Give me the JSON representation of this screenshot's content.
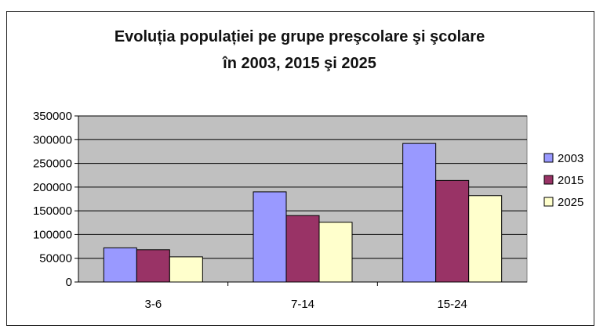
{
  "chart_data": {
    "type": "bar",
    "title_line1": "Evoluția populației pe grupe preşcolare şi şcolare",
    "title_line2": "în 2003, 2015 şi 2025",
    "categories": [
      "3-6",
      "7-14",
      "15-24"
    ],
    "series": [
      {
        "name": "2003",
        "values": [
          72000,
          190000,
          292000
        ],
        "color": "#9999ff"
      },
      {
        "name": "2015",
        "values": [
          68000,
          140000,
          214000
        ],
        "color": "#993366"
      },
      {
        "name": "2025",
        "values": [
          53000,
          126000,
          182000
        ],
        "color": "#ffffcc"
      }
    ],
    "ylim": [
      0,
      350000
    ],
    "yticks": [
      0,
      50000,
      100000,
      150000,
      200000,
      250000,
      300000,
      350000
    ],
    "plot_background": "#c0c0c0",
    "grid": true,
    "legend_position": "right"
  }
}
